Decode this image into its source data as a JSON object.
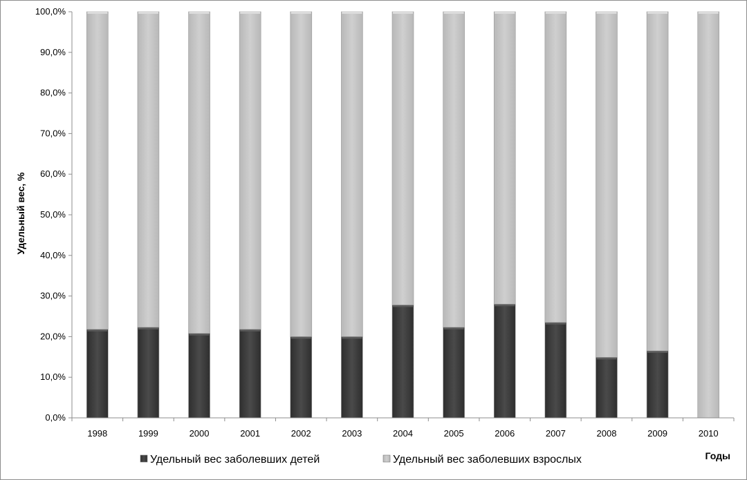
{
  "chart_data": {
    "type": "bar",
    "stacked": true,
    "categories": [
      "1998",
      "1999",
      "2000",
      "2001",
      "2002",
      "2003",
      "2004",
      "2005",
      "2006",
      "2007",
      "2008",
      "2009",
      "2010"
    ],
    "series": [
      {
        "name": "Удельный вес заболевших детей",
        "color": "#404040",
        "values": [
          21.8,
          22.3,
          20.8,
          21.8,
          20.0,
          20.0,
          27.8,
          22.3,
          28.0,
          23.5,
          14.9,
          16.5,
          0.0
        ]
      },
      {
        "name": "Удельный вес заболевших взрослых",
        "color": "#c8c8c8",
        "values": [
          78.2,
          77.7,
          79.2,
          78.2,
          80.0,
          80.0,
          72.2,
          77.7,
          72.0,
          76.5,
          85.1,
          83.5,
          100.0
        ]
      }
    ],
    "ylabel": "Удельный вес, %",
    "xlabel": "Годы",
    "ylim": [
      0,
      100
    ],
    "yticks": [
      "0,0%",
      "10,0%",
      "20,0%",
      "30,0%",
      "40,0%",
      "50,0%",
      "60,0%",
      "70,0%",
      "80,0%",
      "90,0%",
      "100,0%"
    ],
    "grid": false,
    "legend_position": "bottom"
  }
}
